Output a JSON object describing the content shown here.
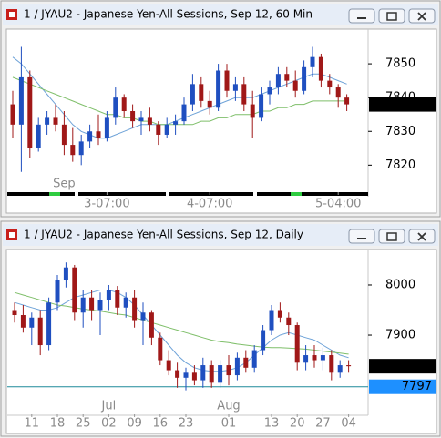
{
  "chart_data": [
    {
      "type": "candlestick",
      "title": "1 / JYAU2 - Japanese Yen-All Sessions, Sep 12, 60 Min",
      "categories": [
        null,
        null,
        null,
        null,
        null,
        null,
        null,
        null,
        null,
        null,
        null,
        "3-07:00",
        null,
        null,
        null,
        null,
        null,
        null,
        null,
        null,
        null,
        null,
        null,
        "4-07:00",
        null,
        null,
        null,
        null,
        null,
        null,
        null,
        null,
        null,
        null,
        null,
        null,
        null,
        null,
        "5-04:00",
        null
      ],
      "month_categories": [
        null,
        null,
        null,
        null,
        null,
        null,
        "Sep",
        null,
        null,
        null,
        null,
        null,
        null,
        null,
        null,
        null,
        null,
        null,
        null,
        null,
        null,
        null,
        null,
        null,
        null,
        null,
        null,
        null,
        null,
        null,
        null,
        null,
        null,
        null,
        null,
        null,
        null,
        null,
        null,
        null
      ],
      "open": [
        7838,
        7832,
        7846,
        7825,
        7832,
        7834,
        7832,
        7826,
        7823,
        7827,
        7830,
        7828,
        7834,
        7840,
        7836,
        7833,
        7834,
        7832,
        7829,
        7832,
        7833,
        7838,
        7844,
        7839,
        7837,
        7848,
        7842,
        7844,
        7838,
        7834,
        7841,
        7843,
        7847,
        7845,
        7842,
        7849,
        7852,
        7845,
        7843,
        7840
      ],
      "high": [
        7842,
        7855,
        7848,
        7834,
        7836,
        7838,
        7836,
        7831,
        7829,
        7832,
        7835,
        7836,
        7843,
        7841,
        7838,
        7836,
        7837,
        7833,
        7834,
        7835,
        7840,
        7847,
        7846,
        7842,
        7850,
        7850,
        7846,
        7846,
        7842,
        7843,
        7845,
        7849,
        7849,
        7848,
        7851,
        7855,
        7853,
        7847,
        7844,
        7841
      ],
      "low": [
        7828,
        7818,
        7822,
        7824,
        7829,
        7830,
        7823,
        7821,
        7820,
        7825,
        7826,
        7827,
        7832,
        7834,
        7831,
        7829,
        7830,
        7826,
        7828,
        7829,
        7832,
        7836,
        7837,
        7835,
        7836,
        7840,
        7839,
        7836,
        7828,
        7833,
        7838,
        7841,
        7843,
        7840,
        7841,
        7846,
        7843,
        7841,
        7837,
        7836
      ],
      "close": [
        7832,
        7846,
        7825,
        7832,
        7834,
        7832,
        7826,
        7823,
        7827,
        7830,
        7828,
        7834,
        7840,
        7836,
        7833,
        7834,
        7832,
        7829,
        7832,
        7833,
        7838,
        7844,
        7839,
        7837,
        7848,
        7842,
        7844,
        7838,
        7834,
        7841,
        7843,
        7847,
        7845,
        7842,
        7849,
        7852,
        7845,
        7843,
        7840,
        7838
      ],
      "up_color": "#1f4fc0",
      "down_color": "#a01818",
      "moving_averages": [
        {
          "color": "#6fa3d8",
          "values": [
            7852,
            7850,
            7847,
            7844,
            7841,
            7838,
            7835,
            7832,
            7830,
            7829,
            7828,
            7828,
            7829,
            7830,
            7831,
            7832,
            7832,
            7832,
            7832,
            7833,
            7834,
            7835,
            7836,
            7837,
            7838,
            7839,
            7840,
            7840,
            7840,
            7841,
            7842,
            7843,
            7844,
            7845,
            7846,
            7847,
            7847,
            7846,
            7845,
            7844
          ]
        },
        {
          "color": "#7fbf6a",
          "values": [
            7846,
            7845,
            7844,
            7843,
            7842,
            7841,
            7840,
            7839,
            7838,
            7837,
            7836,
            7835,
            7835,
            7834,
            7834,
            7833,
            7833,
            7832,
            7832,
            7832,
            7832,
            7832,
            7833,
            7833,
            7834,
            7834,
            7835,
            7835,
            7835,
            7836,
            7836,
            7837,
            7837,
            7838,
            7838,
            7839,
            7839,
            7839,
            7839,
            7839
          ]
        }
      ],
      "ylim": [
        7812,
        7860
      ],
      "yticks": [
        7820,
        7830,
        7840,
        7850
      ],
      "price_markers": [
        {
          "value": 7838,
          "color": "#000000"
        }
      ]
    },
    {
      "type": "candlestick",
      "title": "1 / JYAU2 - Japanese Yen-All Sessions, Sep 12, Daily",
      "categories": [
        null,
        null,
        "11",
        null,
        null,
        "18",
        null,
        null,
        "25",
        null,
        null,
        "02",
        null,
        null,
        "09",
        null,
        null,
        "16",
        null,
        null,
        "23",
        null,
        null,
        null,
        null,
        "01",
        null,
        null,
        null,
        null,
        "13",
        null,
        null,
        "20",
        null,
        null,
        "27",
        null,
        null,
        "04"
      ],
      "month_categories": [
        null,
        null,
        null,
        null,
        null,
        null,
        null,
        null,
        null,
        null,
        null,
        "Jul",
        null,
        null,
        null,
        null,
        null,
        null,
        null,
        null,
        null,
        null,
        null,
        null,
        null,
        "Aug",
        null,
        null,
        null,
        null,
        null,
        null,
        null,
        null,
        null,
        null,
        null,
        null,
        null,
        null
      ],
      "open": [
        7950,
        7940,
        7915,
        7935,
        7880,
        7965,
        8010,
        8035,
        7945,
        7975,
        7950,
        7970,
        7990,
        7955,
        7975,
        7930,
        7945,
        7895,
        7850,
        7830,
        7815,
        7825,
        7810,
        7840,
        7805,
        7840,
        7820,
        7855,
        7835,
        7870,
        7910,
        7950,
        7935,
        7920,
        7845,
        7860,
        7850,
        7860,
        7825,
        7840
      ],
      "high": [
        7965,
        7960,
        7945,
        7950,
        7975,
        8020,
        8045,
        8040,
        7990,
        7990,
        7985,
        8000,
        7998,
        7985,
        7990,
        7965,
        7950,
        7905,
        7870,
        7845,
        7835,
        7840,
        7855,
        7850,
        7850,
        7860,
        7865,
        7870,
        7880,
        7920,
        7960,
        7965,
        7945,
        7925,
        7880,
        7880,
        7875,
        7870,
        7850,
        7850
      ],
      "low": [
        7925,
        7905,
        7880,
        7860,
        7870,
        7950,
        7995,
        7930,
        7915,
        7930,
        7900,
        7950,
        7940,
        7935,
        7915,
        7880,
        7880,
        7840,
        7820,
        7795,
        7790,
        7800,
        7795,
        7795,
        7795,
        7800,
        7810,
        7825,
        7825,
        7860,
        7900,
        7925,
        7900,
        7830,
        7830,
        7835,
        7830,
        7810,
        7815,
        7825
      ],
      "close": [
        7940,
        7915,
        7935,
        7880,
        7965,
        8010,
        8035,
        7945,
        7975,
        7950,
        7970,
        7990,
        7955,
        7975,
        7930,
        7945,
        7895,
        7850,
        7830,
        7815,
        7825,
        7810,
        7840,
        7805,
        7840,
        7820,
        7855,
        7835,
        7870,
        7910,
        7950,
        7935,
        7920,
        7845,
        7860,
        7850,
        7860,
        7825,
        7840,
        7838
      ],
      "up_color": "#1f4fc0",
      "down_color": "#a01818",
      "moving_averages": [
        {
          "color": "#6fa3d8",
          "values": [
            7965,
            7960,
            7955,
            7950,
            7950,
            7955,
            7965,
            7975,
            7980,
            7985,
            7990,
            7990,
            7985,
            7975,
            7960,
            7940,
            7920,
            7900,
            7880,
            7860,
            7845,
            7835,
            7830,
            7828,
            7828,
            7830,
            7835,
            7845,
            7860,
            7875,
            7890,
            7900,
            7905,
            7900,
            7895,
            7890,
            7880,
            7870,
            7860,
            7855
          ]
        },
        {
          "color": "#7fbf6a",
          "values": [
            7985,
            7980,
            7975,
            7970,
            7965,
            7960,
            7958,
            7955,
            7952,
            7950,
            7948,
            7945,
            7942,
            7940,
            7935,
            7930,
            7925,
            7920,
            7915,
            7910,
            7905,
            7900,
            7895,
            7890,
            7887,
            7885,
            7882,
            7880,
            7878,
            7876,
            7875,
            7875,
            7874,
            7873,
            7872,
            7870,
            7868,
            7866,
            7864,
            7862
          ]
        }
      ],
      "ylim": [
        7742,
        8069
      ],
      "yticks": [
        7900,
        8000
      ],
      "price_markers": [
        {
          "value": 7838,
          "color": "#000000"
        },
        {
          "value": 7797,
          "color": "#1e90ff",
          "line": true
        }
      ]
    }
  ]
}
